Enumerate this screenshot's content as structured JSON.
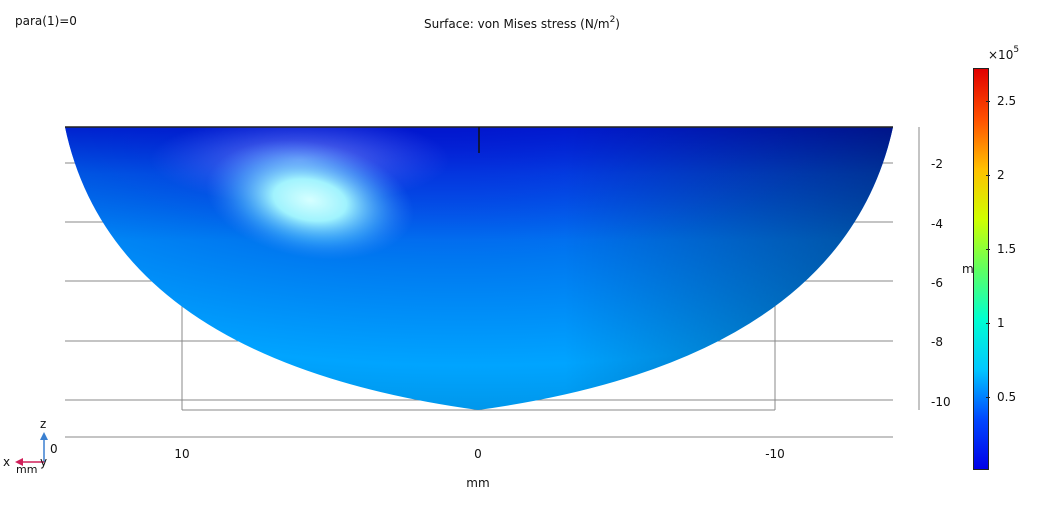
{
  "parameter_label": "para(1)=0",
  "title": {
    "prefix": "Surface: von Mises stress (N/m",
    "superscript": "2",
    "suffix": ")"
  },
  "x_axis": {
    "unit": "mm",
    "ticks": [
      "10",
      "0",
      "-10"
    ]
  },
  "z_axis": {
    "unit_clipped": "m",
    "ticks": [
      "-2",
      "-4",
      "-6",
      "-8",
      "-10"
    ]
  },
  "triad": {
    "z_label": "z",
    "x_label": "x",
    "y_label": "y",
    "unit": "mm",
    "origin_label": "0"
  },
  "colorbar": {
    "multiplier_base": "×10",
    "multiplier_exponent": "5",
    "ticks": [
      "2.5",
      "2",
      "1.5",
      "1",
      "0.5"
    ],
    "gradient_stops": [
      "#0000e8",
      "#0048ff",
      "#00c8ff",
      "#00ffd0",
      "#60ff60",
      "#d0ff00",
      "#ffc000",
      "#ff5000",
      "#e00000"
    ]
  },
  "colors": {
    "surface_dark": "#0a1aa8",
    "surface_mid": "#0080f0",
    "surface_light": "#00a6ff",
    "hotspot": "#c8ffff",
    "grid": "#888888"
  }
}
